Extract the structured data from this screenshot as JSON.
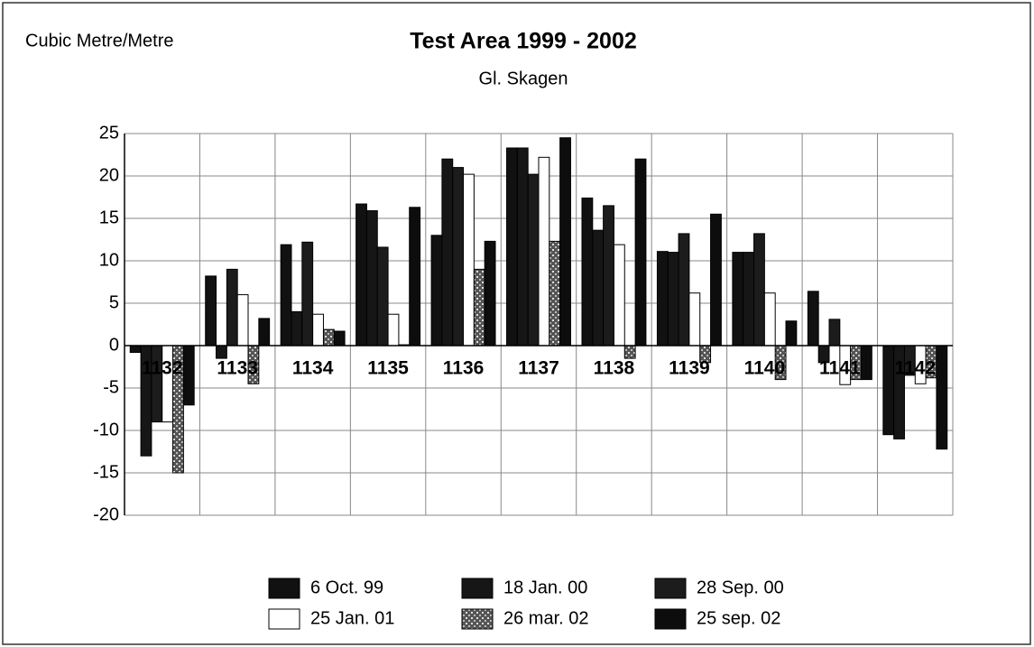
{
  "chart_data": {
    "type": "bar",
    "title": "Test Area 1999 - 2002",
    "subtitle": "Gl. Skagen",
    "y_label": "Cubic Metre/Metre",
    "categories": [
      "1132",
      "1133",
      "1134",
      "1135",
      "1136",
      "1137",
      "1138",
      "1139",
      "1140",
      "1141",
      "1142"
    ],
    "series": [
      {
        "name": "6 Oct. 99",
        "color": "#111111",
        "values": [
          -0.8,
          8.2,
          11.9,
          16.7,
          13,
          23.3,
          17.4,
          11.1,
          11,
          6.4,
          -10.5
        ]
      },
      {
        "name": "18 Jan. 00",
        "color": "#161616",
        "values": [
          -13,
          -1.5,
          4,
          15.9,
          22,
          23.3,
          13.6,
          11,
          11,
          -2,
          -11
        ]
      },
      {
        "name": "28 Sep. 00",
        "color": "#1c1c1c",
        "values": [
          -9,
          9,
          12.2,
          11.6,
          21,
          20.2,
          16.5,
          13.2,
          13.2,
          3.1,
          -3.5
        ]
      },
      {
        "name": "25 Jan. 01",
        "color": "#ffffff",
        "values": [
          -9,
          6,
          3.7,
          3.7,
          20.2,
          22.2,
          11.9,
          6.2,
          6.2,
          -4.6,
          -4.5
        ]
      },
      {
        "name": "26 mar. 02",
        "color": "#777777",
        "values": [
          -15,
          -4.5,
          1.9,
          0.1,
          9,
          12.3,
          -1.5,
          -2,
          -4,
          -4,
          -3.8
        ]
      },
      {
        "name": "25 sep. 02",
        "color": "#0d0d0d",
        "values": [
          -7,
          3.2,
          1.7,
          16.3,
          12.3,
          24.5,
          22,
          15.5,
          2.9,
          -4,
          -12.2
        ]
      }
    ],
    "ylim": [
      -20,
      25
    ],
    "yticks": [
      -20,
      -15,
      -10,
      -5,
      0,
      5,
      10,
      15,
      20,
      25
    ],
    "grid": true
  }
}
